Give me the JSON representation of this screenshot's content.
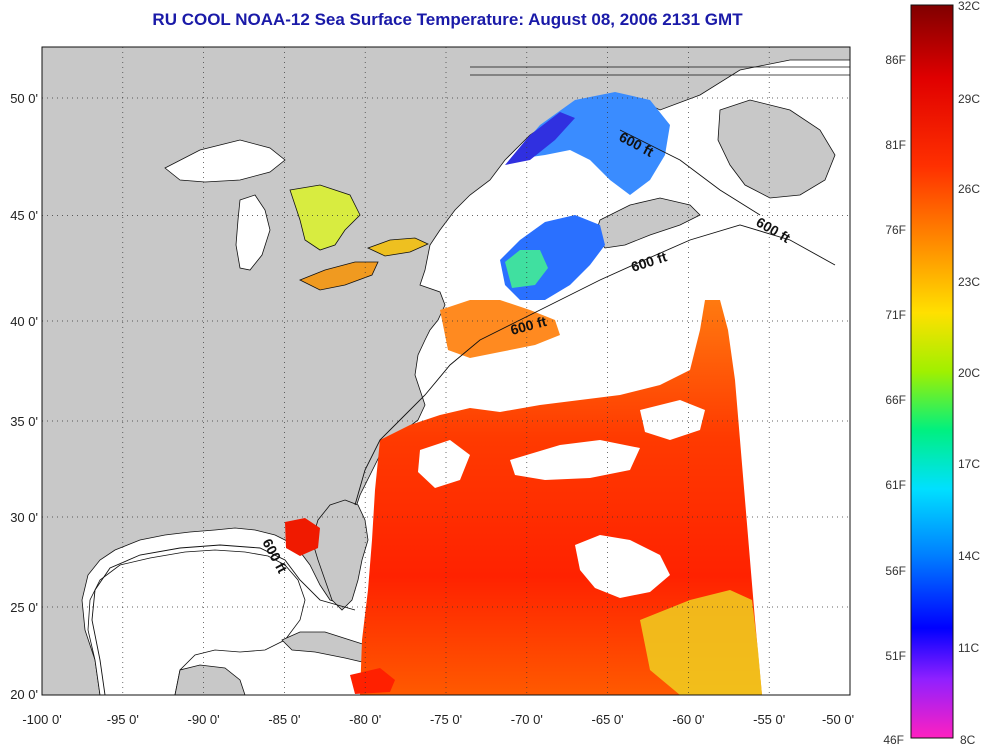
{
  "title": "RU COOL  NOAA-12  Sea Surface Temperature:  August 08, 2006 2131 GMT",
  "axes": {
    "lon_ticks": [
      "-100 0'",
      "-95 0'",
      "-90 0'",
      "-85 0'",
      "-80 0'",
      "-75 0'",
      "-70 0'",
      "-65 0'",
      "-60 0'",
      "-55 0'",
      "-50 0'"
    ],
    "lat_ticks": [
      "50 0'",
      "45 0'",
      "40 0'",
      "35 0'",
      "30 0'",
      "25 0'",
      "20 0'"
    ],
    "lon_range": [
      -100,
      -50
    ],
    "lat_range": [
      20,
      52.5
    ]
  },
  "depth_labels": [
    "600 ft",
    "600 ft",
    "600 ft",
    "600 ft",
    "600 ft"
  ],
  "colorbar": {
    "celsius": [
      "32C",
      "29C",
      "26C",
      "23C",
      "20C",
      "17C",
      "14C",
      "11C",
      "8C"
    ],
    "fahrenheit": [
      "86F",
      "81F",
      "76F",
      "71F",
      "66F",
      "61F",
      "56F",
      "51F",
      "46F"
    ],
    "range_c": [
      8,
      32
    ]
  },
  "colors": {
    "title": "#1a1aa8",
    "land": "#c8c8c8",
    "cloud": "#ffffff",
    "sst_warm": "#ff2a00",
    "sst_cool": "#2a3cff"
  }
}
